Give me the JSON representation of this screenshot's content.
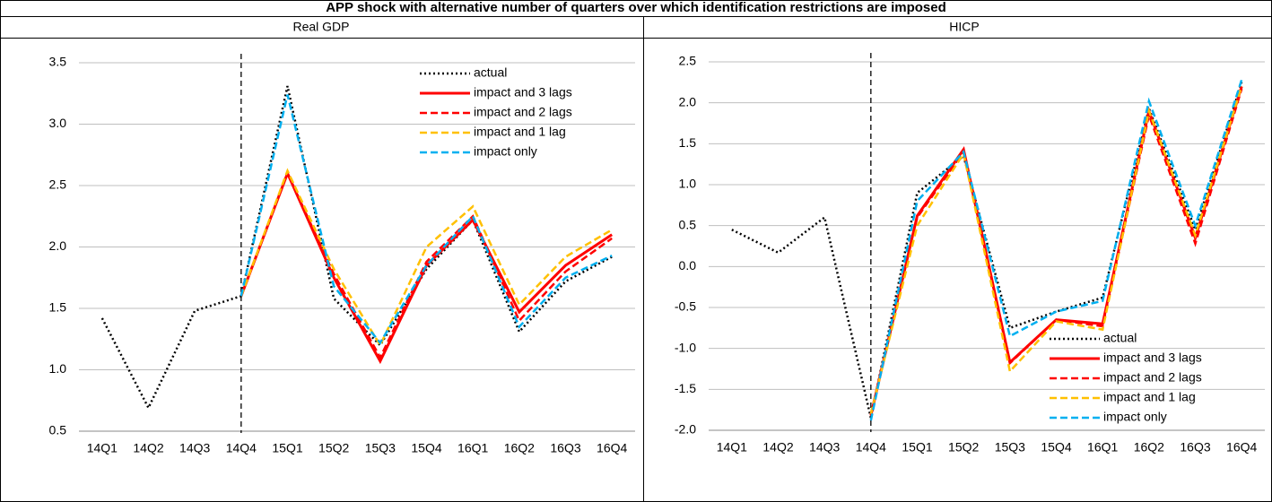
{
  "title": "APP shock with alternative number of quarters over which identification restrictions are imposed",
  "chart_data": [
    {
      "type": "line",
      "title": "Real GDP",
      "categories": [
        "14Q1",
        "14Q2",
        "14Q3",
        "14Q4",
        "15Q1",
        "15Q2",
        "15Q3",
        "15Q4",
        "16Q1",
        "16Q2",
        "16Q3",
        "16Q4"
      ],
      "ylim": [
        0.5,
        3.5
      ],
      "yticks": [
        0.5,
        {
          "value": 1,
          "label": "1.0"
        },
        1.5,
        {
          "value": 2,
          "label": "2.0"
        },
        2.5,
        {
          "value": 3,
          "label": "3.0"
        },
        3.5
      ],
      "grid": true,
      "legend": "top-right",
      "vline": "14Q4",
      "series": [
        {
          "name": "actual",
          "color": "#000000",
          "dash": "dotted",
          "values": [
            1.42,
            0.69,
            1.48,
            1.6,
            3.31,
            1.58,
            1.2,
            1.82,
            2.22,
            1.31,
            1.72,
            1.92
          ]
        },
        {
          "name": "impact and 3 lags",
          "color": "#ff0000",
          "dash": "solid",
          "values": [
            null,
            null,
            null,
            1.6,
            2.6,
            1.75,
            1.07,
            1.85,
            2.22,
            1.47,
            1.85,
            2.1
          ]
        },
        {
          "name": "impact and 2 lags",
          "color": "#ff0000",
          "dash": "dashed",
          "values": [
            null,
            null,
            null,
            1.6,
            2.6,
            1.78,
            1.1,
            1.88,
            2.25,
            1.4,
            1.8,
            2.07
          ]
        },
        {
          "name": "impact and 1 lag",
          "color": "#ffc000",
          "dash": "dashed",
          "values": [
            null,
            null,
            null,
            1.6,
            2.62,
            1.82,
            1.2,
            2.0,
            2.33,
            1.53,
            1.92,
            2.14
          ]
        },
        {
          "name": "impact only",
          "color": "#00b0f0",
          "dash": "dashed",
          "values": [
            null,
            null,
            null,
            1.6,
            3.24,
            1.68,
            1.22,
            1.85,
            2.25,
            1.35,
            1.75,
            1.93
          ]
        }
      ]
    },
    {
      "type": "line",
      "title": "HICP",
      "categories": [
        "14Q1",
        "14Q2",
        "14Q3",
        "14Q4",
        "15Q1",
        "15Q2",
        "15Q3",
        "15Q4",
        "16Q1",
        "16Q2",
        "16Q3",
        "16Q4"
      ],
      "ylim": [
        -2,
        2.5
      ],
      "yticks": [
        {
          "value": -2,
          "label": "-2.0"
        },
        -1.5,
        {
          "value": -1,
          "label": "-1.0"
        },
        -0.5,
        {
          "value": 0,
          "label": "0.0"
        },
        0.5,
        {
          "value": 1,
          "label": "1.0"
        },
        1.5,
        {
          "value": 2,
          "label": "2.0"
        },
        2.5
      ],
      "grid": true,
      "legend": "bottom-right",
      "vline": "14Q4",
      "series": [
        {
          "name": "actual",
          "color": "#000000",
          "dash": "dotted",
          "values": [
            0.45,
            0.17,
            0.6,
            -1.85,
            0.9,
            1.35,
            -0.75,
            -0.55,
            -0.38,
            1.93,
            0.45,
            2.25
          ]
        },
        {
          "name": "impact and 3 lags",
          "color": "#ff0000",
          "dash": "solid",
          "values": [
            null,
            null,
            null,
            -1.82,
            0.62,
            1.43,
            -1.17,
            -0.65,
            -0.7,
            1.9,
            0.35,
            2.2
          ]
        },
        {
          "name": "impact and 2 lags",
          "color": "#ff0000",
          "dash": "dashed",
          "values": [
            null,
            null,
            null,
            -1.8,
            0.6,
            1.4,
            -1.18,
            -0.65,
            -0.73,
            1.85,
            0.28,
            2.17
          ]
        },
        {
          "name": "impact and 1 lag",
          "color": "#ffc000",
          "dash": "dashed",
          "values": [
            null,
            null,
            null,
            -1.8,
            0.5,
            1.38,
            -1.28,
            -0.67,
            -0.77,
            1.9,
            0.38,
            2.2
          ]
        },
        {
          "name": "impact only",
          "color": "#00b0f0",
          "dash": "dashed",
          "values": [
            null,
            null,
            null,
            -1.88,
            0.8,
            1.4,
            -0.85,
            -0.55,
            -0.42,
            2.02,
            0.5,
            2.28
          ]
        }
      ]
    }
  ]
}
